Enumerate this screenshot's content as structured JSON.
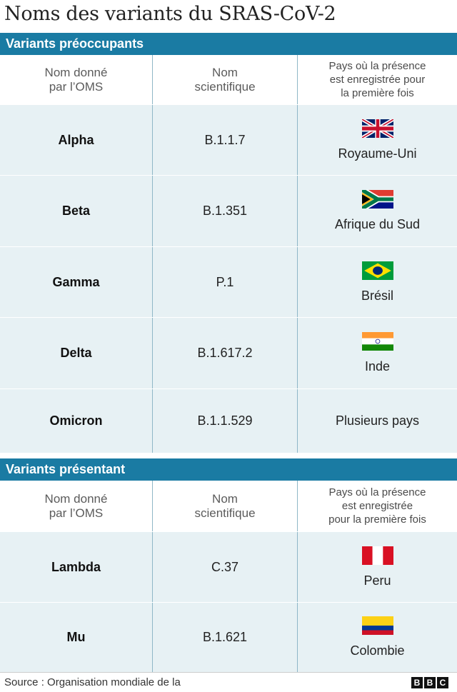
{
  "title": "Noms des variants du SRAS-CoV-2",
  "section1": {
    "heading": "Variants préoccupants",
    "headers": {
      "who_line1": "Nom donné",
      "who_line2": "par l’OMS",
      "sci_line1": "Nom",
      "sci_line2": "scientifique",
      "country_line1": "Pays où la présence",
      "country_line2": "est enregistrée pour",
      "country_line3": "la première fois"
    },
    "rows": [
      {
        "who": "Alpha",
        "sci": "B.1.1.7",
        "country": "Royaume-Uni",
        "flag": "uk-flag"
      },
      {
        "who": "Beta",
        "sci": "B.1.351",
        "country": "Afrique du Sud",
        "flag": "south-africa-flag"
      },
      {
        "who": "Gamma",
        "sci": "P.1",
        "country": "Brésil",
        "flag": "brazil-flag"
      },
      {
        "who": "Delta",
        "sci": "B.1.617.2",
        "country": "Inde",
        "flag": "india-flag"
      },
      {
        "who": "Omicron",
        "sci": "B.1.1.529",
        "country": "Plusieurs pays"
      }
    ]
  },
  "section2": {
    "heading": "Variants présentant",
    "headers": {
      "who_line1": "Nom donné",
      "who_line2": "par l’OMS",
      "sci_line1": "Nom",
      "sci_line2": "scientifique",
      "country_line1": "Pays où la présence",
      "country_line2": "est enregistrée",
      "country_line3": "pour la première fois"
    },
    "rows": [
      {
        "who": "Lambda",
        "sci": "C.37",
        "country": "Peru",
        "flag": "peru-flag"
      },
      {
        "who": "Mu",
        "sci": "B.1.621",
        "country": "Colombie",
        "flag": "colombia-flag"
      }
    ]
  },
  "footer": {
    "source": "Source : Organisation mondiale de la",
    "logo_letters": [
      "B",
      "B",
      "C"
    ]
  },
  "colors": {
    "section_bar": "#1a7ba3",
    "row_bg": "#e7f1f4",
    "divider": "#8fb7c7"
  }
}
